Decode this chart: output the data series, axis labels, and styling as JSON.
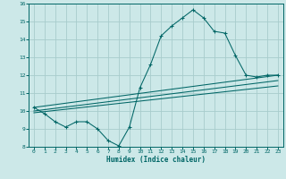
{
  "xlabel": "Humidex (Indice chaleur)",
  "bg_color": "#cce8e8",
  "grid_color": "#a8cccc",
  "line_color": "#006666",
  "xlim": [
    -0.5,
    23.5
  ],
  "ylim": [
    8,
    16
  ],
  "xticks": [
    0,
    1,
    2,
    3,
    4,
    5,
    6,
    7,
    8,
    9,
    10,
    11,
    12,
    13,
    14,
    15,
    16,
    17,
    18,
    19,
    20,
    21,
    22,
    23
  ],
  "yticks": [
    8,
    9,
    10,
    11,
    12,
    13,
    14,
    15,
    16
  ],
  "main_x": [
    0,
    1,
    2,
    3,
    4,
    5,
    6,
    7,
    8,
    9,
    10,
    11,
    12,
    13,
    14,
    15,
    16,
    17,
    18,
    19,
    20,
    21,
    22,
    23
  ],
  "main_y": [
    10.2,
    9.85,
    9.4,
    9.1,
    9.4,
    9.4,
    9.0,
    8.35,
    8.05,
    9.1,
    11.3,
    12.6,
    14.2,
    14.75,
    15.2,
    15.65,
    15.2,
    14.45,
    14.35,
    13.1,
    12.0,
    11.9,
    12.0,
    12.0
  ],
  "line1_x": [
    0,
    23
  ],
  "line1_y": [
    10.2,
    12.0
  ],
  "line2_x": [
    0,
    23
  ],
  "line2_y": [
    10.0,
    11.7
  ],
  "line3_x": [
    0,
    23
  ],
  "line3_y": [
    9.9,
    11.4
  ]
}
